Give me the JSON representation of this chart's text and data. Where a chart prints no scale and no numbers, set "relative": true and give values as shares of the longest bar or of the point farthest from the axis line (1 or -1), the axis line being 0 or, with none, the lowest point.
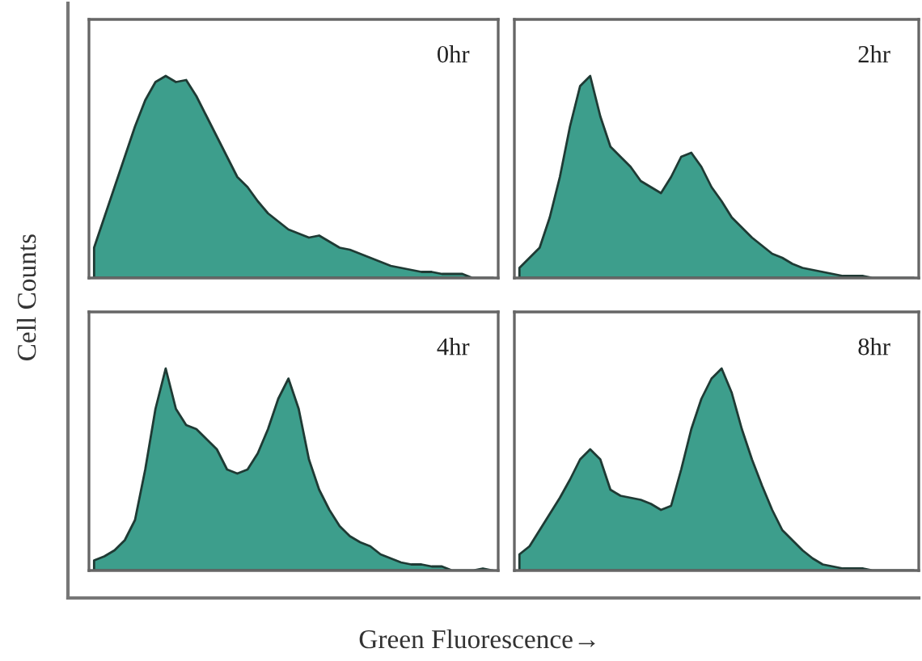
{
  "chart_data": [
    {
      "type": "area",
      "title": "0hr",
      "ylabel": "Cell Counts",
      "relative": true,
      "categories": [
        null,
        null,
        null,
        null,
        null,
        null,
        null,
        null,
        null,
        null,
        null,
        null,
        null,
        null,
        null,
        null,
        null,
        null,
        null,
        null,
        null,
        null,
        null,
        null,
        null,
        null,
        null,
        null,
        null,
        null,
        null,
        null,
        null,
        null,
        null,
        null,
        null,
        null,
        null,
        null
      ],
      "color": "#3d9e8c",
      "values": [
        0.15,
        0.3,
        0.45,
        0.6,
        0.75,
        0.88,
        0.97,
        1.0,
        0.97,
        0.98,
        0.9,
        0.8,
        0.7,
        0.6,
        0.5,
        0.45,
        0.38,
        0.32,
        0.28,
        0.24,
        0.22,
        0.2,
        0.21,
        0.18,
        0.15,
        0.14,
        0.12,
        0.1,
        0.08,
        0.06,
        0.05,
        0.04,
        0.03,
        0.03,
        0.02,
        0.02,
        0.02,
        0,
        0,
        0
      ]
    },
    {
      "type": "area",
      "title": "2hr",
      "relative": true,
      "categories": [
        null,
        null,
        null,
        null,
        null,
        null,
        null,
        null,
        null,
        null,
        null,
        null,
        null,
        null,
        null,
        null,
        null,
        null,
        null,
        null,
        null,
        null,
        null,
        null,
        null,
        null,
        null,
        null,
        null,
        null,
        null,
        null,
        null,
        null,
        null,
        null,
        null,
        null,
        null,
        null
      ],
      "color": "#3d9e8c",
      "values": [
        0.05,
        0.1,
        0.15,
        0.3,
        0.5,
        0.75,
        0.95,
        1.0,
        0.8,
        0.65,
        0.6,
        0.55,
        0.48,
        0.45,
        0.42,
        0.5,
        0.6,
        0.62,
        0.55,
        0.45,
        0.38,
        0.3,
        0.25,
        0.2,
        0.16,
        0.12,
        0.1,
        0.07,
        0.05,
        0.04,
        0.03,
        0.02,
        0.01,
        0.01,
        0.01,
        0,
        0,
        0,
        0,
        0
      ]
    },
    {
      "type": "area",
      "title": "4hr",
      "xlabel": "Green Fluorescence→",
      "relative": true,
      "categories": [
        null,
        null,
        null,
        null,
        null,
        null,
        null,
        null,
        null,
        null,
        null,
        null,
        null,
        null,
        null,
        null,
        null,
        null,
        null,
        null,
        null,
        null,
        null,
        null,
        null,
        null,
        null,
        null,
        null,
        null,
        null,
        null,
        null,
        null,
        null,
        null,
        null,
        null,
        null,
        null
      ],
      "color": "#3d9e8c",
      "values": [
        0.05,
        0.07,
        0.1,
        0.15,
        0.25,
        0.5,
        0.8,
        1.0,
        0.8,
        0.72,
        0.7,
        0.65,
        0.6,
        0.5,
        0.48,
        0.5,
        0.58,
        0.7,
        0.85,
        0.95,
        0.8,
        0.55,
        0.4,
        0.3,
        0.22,
        0.17,
        0.14,
        0.12,
        0.08,
        0.06,
        0.04,
        0.03,
        0.03,
        0.02,
        0.02,
        0,
        0,
        0,
        0.01,
        0
      ]
    },
    {
      "type": "area",
      "title": "8hr",
      "relative": true,
      "categories": [
        null,
        null,
        null,
        null,
        null,
        null,
        null,
        null,
        null,
        null,
        null,
        null,
        null,
        null,
        null,
        null,
        null,
        null,
        null,
        null,
        null,
        null,
        null,
        null,
        null,
        null,
        null,
        null,
        null,
        null,
        null,
        null,
        null,
        null,
        null,
        null,
        null,
        null,
        null,
        null
      ],
      "color": "#3d9e8c",
      "values": [
        0.08,
        0.12,
        0.2,
        0.28,
        0.36,
        0.45,
        0.55,
        0.6,
        0.55,
        0.4,
        0.37,
        0.36,
        0.35,
        0.33,
        0.3,
        0.32,
        0.5,
        0.7,
        0.85,
        0.95,
        1.0,
        0.88,
        0.7,
        0.55,
        0.42,
        0.3,
        0.2,
        0.15,
        0.1,
        0.06,
        0.03,
        0.02,
        0.01,
        0.01,
        0.01,
        0,
        0,
        0,
        0,
        0
      ]
    }
  ]
}
